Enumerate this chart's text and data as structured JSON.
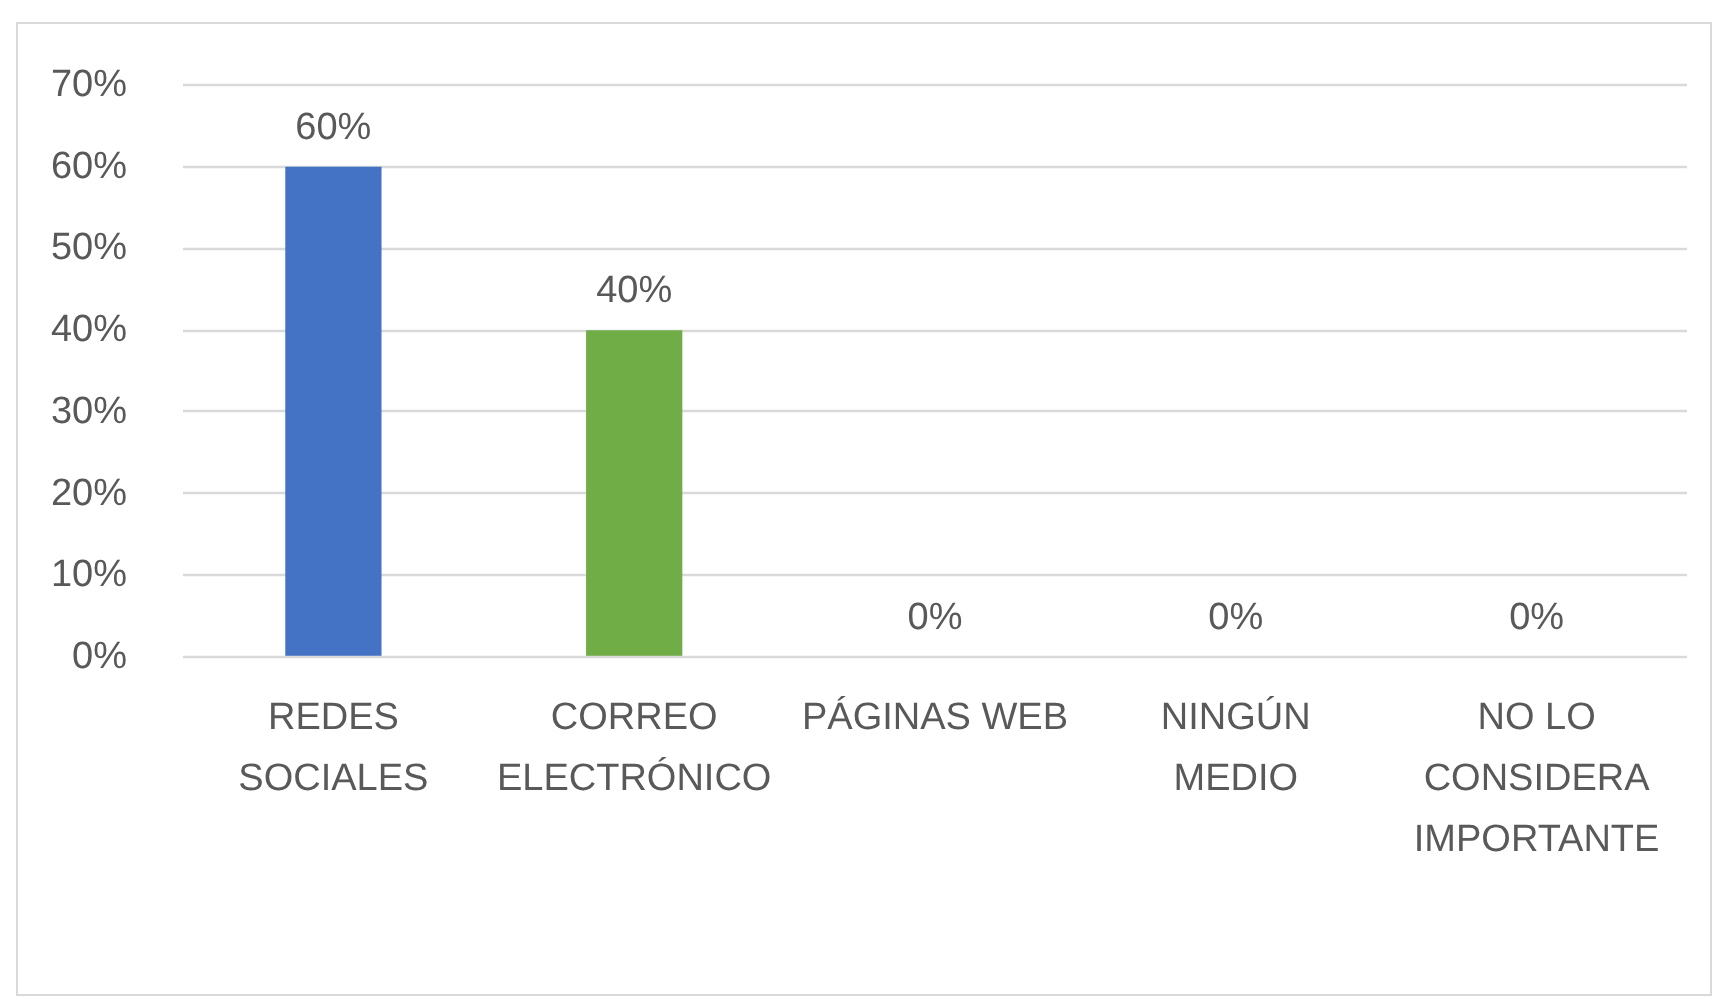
{
  "chart_data": {
    "type": "bar",
    "categories": [
      "REDES SOCIALES",
      "CORREO ELECTRÓNICO",
      "PÁGINAS WEB",
      "NINGÚN MEDIO",
      "NO LO CONSIDERA IMPORTANTE"
    ],
    "values": [
      60,
      40,
      0,
      0,
      0
    ],
    "colors": [
      "#4472c4",
      "#70ad47",
      null,
      null,
      null
    ],
    "value_labels": [
      "60%",
      "40%",
      "0%",
      "0%",
      "0%"
    ],
    "ylim": [
      0,
      70
    ],
    "yticks": [
      {
        "value": 0,
        "label": "0%"
      },
      {
        "value": 10,
        "label": "10%"
      },
      {
        "value": 20,
        "label": "20%"
      },
      {
        "value": 30,
        "label": "30%"
      },
      {
        "value": 40,
        "label": "40%"
      },
      {
        "value": 50,
        "label": "50%"
      },
      {
        "value": 60,
        "label": "60%"
      },
      {
        "value": 70,
        "label": "70%"
      }
    ],
    "grid": "y"
  }
}
